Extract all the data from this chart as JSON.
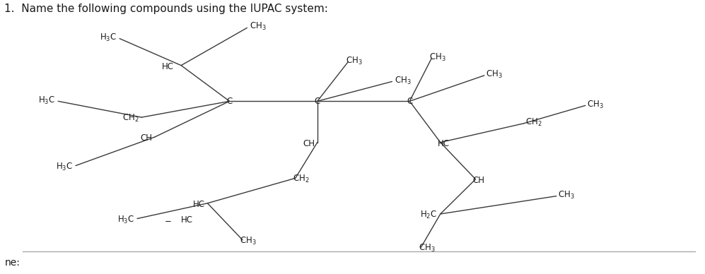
{
  "title": "1.  Name the following compounds using the IUPAC system:",
  "title_fontsize": 11,
  "bg_color": "#ffffff",
  "line_color": "#3a3a3a",
  "text_color": "#1a1a1a",
  "label_fontsize": 8.5,
  "name_label": "ne:",
  "xlim": [
    1.5,
    9.5
  ],
  "ylim": [
    0.2,
    7.8
  ]
}
